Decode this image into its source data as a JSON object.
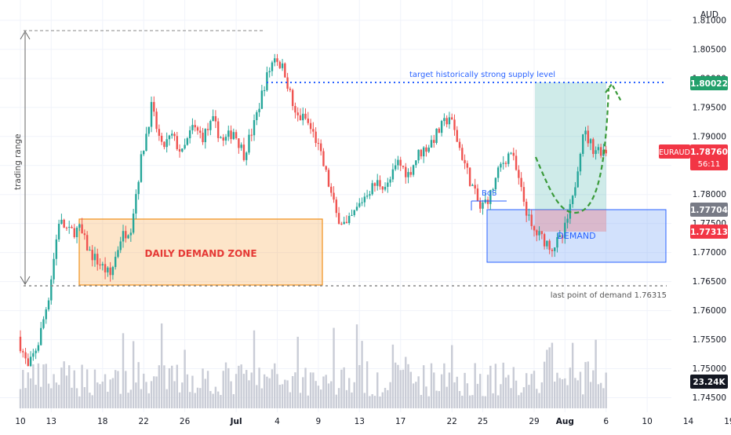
{
  "chart_data": {
    "type": "candlestick",
    "symbol": "EURAUD",
    "currency": "AUD",
    "price_range": [
      1.7425,
      1.8135
    ],
    "y_ticks": [
      "1.81000",
      "1.80500",
      "1.80000",
      "1.79500",
      "1.79000",
      "1.78500",
      "1.78000",
      "1.77500",
      "1.77000",
      "1.76500",
      "1.76000",
      "1.75500",
      "1.75000",
      "1.74500"
    ],
    "x_ticks": [
      {
        "day": 0,
        "label": "10"
      },
      {
        "day": 3,
        "label": "13"
      },
      {
        "day": 8,
        "label": "18"
      },
      {
        "day": 12,
        "label": "22"
      },
      {
        "day": 16,
        "label": "26"
      },
      {
        "day": 21,
        "label": "Jul"
      },
      {
        "day": 25,
        "label": "4"
      },
      {
        "day": 29,
        "label": "9"
      },
      {
        "day": 33,
        "label": "13"
      },
      {
        "day": 37,
        "label": "17"
      },
      {
        "day": 42,
        "label": "22"
      },
      {
        "day": 45,
        "label": "25"
      },
      {
        "day": 50,
        "label": "29"
      },
      {
        "day": 53,
        "label": "Aug"
      },
      {
        "day": 57,
        "label": "6"
      },
      {
        "day": 61,
        "label": "10"
      },
      {
        "day": 65,
        "label": "14"
      },
      {
        "day": 69,
        "label": "19"
      }
    ],
    "price_path": [
      [
        0,
        1.7555
      ],
      [
        1,
        1.75
      ],
      [
        2,
        1.7545
      ],
      [
        3,
        1.7625
      ],
      [
        4,
        1.7755
      ],
      [
        5,
        1.7735
      ],
      [
        6,
        1.774
      ],
      [
        7,
        1.77
      ],
      [
        8,
        1.768
      ],
      [
        9,
        1.766
      ],
      [
        10,
        1.7725
      ],
      [
        11,
        1.7745
      ],
      [
        12,
        1.786
      ],
      [
        13,
        1.795
      ],
      [
        14,
        1.788
      ],
      [
        15,
        1.79
      ],
      [
        16,
        1.787
      ],
      [
        17,
        1.7915
      ],
      [
        18,
        1.79
      ],
      [
        19,
        1.7925
      ],
      [
        20,
        1.789
      ],
      [
        21,
        1.791
      ],
      [
        22,
        1.787
      ],
      [
        23,
        1.792
      ],
      [
        24,
        1.799
      ],
      [
        25,
        1.804
      ],
      [
        26,
        1.801
      ],
      [
        27,
        1.7935
      ],
      [
        28,
        1.793
      ],
      [
        29,
        1.7895
      ],
      [
        30,
        1.7835
      ],
      [
        31,
        1.7765
      ],
      [
        32,
        1.7745
      ],
      [
        33,
        1.7775
      ],
      [
        34,
        1.7805
      ],
      [
        35,
        1.782
      ],
      [
        36,
        1.7815
      ],
      [
        37,
        1.7855
      ],
      [
        38,
        1.7835
      ],
      [
        39,
        1.787
      ],
      [
        40,
        1.7885
      ],
      [
        41,
        1.791
      ],
      [
        42,
        1.7935
      ],
      [
        43,
        1.788
      ],
      [
        44,
        1.7825
      ],
      [
        45,
        1.7775
      ],
      [
        46,
        1.78
      ],
      [
        47,
        1.785
      ],
      [
        48,
        1.7875
      ],
      [
        49,
        1.7805
      ],
      [
        50,
        1.774
      ],
      [
        51,
        1.7725
      ],
      [
        52,
        1.771
      ],
      [
        53,
        1.7725
      ],
      [
        54,
        1.779
      ],
      [
        55,
        1.791
      ],
      [
        56,
        1.788
      ],
      [
        57,
        1.7876
      ]
    ],
    "volume_scale_max": "23.24K",
    "annotations": {
      "trading_range": "trading range",
      "target": "target historically strong supply level",
      "bos": "BoS",
      "daily_zone": "DAILY DEMAND ZONE",
      "demand": "DEMAND",
      "last_demand": "last point of demand 1.76315"
    },
    "price_labels": {
      "target": {
        "value": 1.80022,
        "text": "1.80022",
        "color": "#22a06b"
      },
      "current": {
        "value": 1.7876,
        "text": "1.78760",
        "symbol": "EURAUD",
        "countdown": "56:11",
        "color": "#f23645"
      },
      "demand_top": {
        "value": 1.77704,
        "text": "1.77704",
        "color": "#787b86"
      },
      "demand_low": {
        "value": 1.77313,
        "text": "1.77313",
        "color": "#f23645"
      }
    },
    "levels": {
      "daily_zone": [
        1.763,
        1.775
      ],
      "demand_zone": [
        1.7673,
        1.777
      ],
      "last_demand": 1.76315,
      "trading_range": [
        1.763,
        1.8095
      ]
    },
    "colors": {
      "up": "#26a69a",
      "down": "#ef5350",
      "grid": "#f0f3fa",
      "axis_text": "#131722"
    }
  }
}
